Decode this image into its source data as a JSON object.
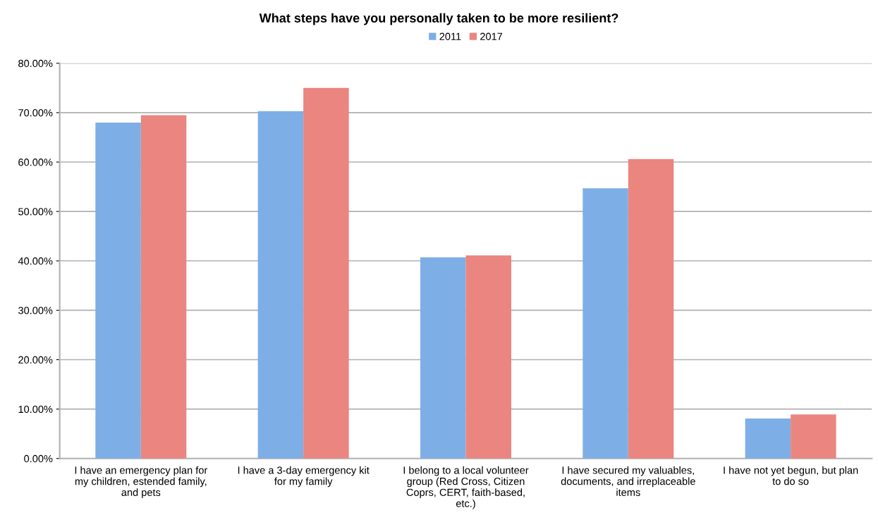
{
  "chart_data": {
    "type": "bar",
    "title": "What steps have you personally taken to be more resilient?",
    "categories": [
      "I have an emergency plan for\nmy children, estended family,\nand pets",
      "I have a 3-day emergency kit\nfor my family",
      "I belong to a local volunteer\ngroup (Red Cross, Citizen\nCoprs, CERT, faith-based,\netc.)",
      "I have secured my valuables,\ndocuments, and irreplaceable\nitems",
      "I have not yet begun, but plan\nto do so"
    ],
    "series": [
      {
        "name": "2011",
        "color": "#7eaee6",
        "values": [
          68.0,
          70.3,
          40.7,
          54.7,
          8.1
        ]
      },
      {
        "name": "2017",
        "color": "#ea8580",
        "values": [
          69.5,
          75.0,
          41.1,
          60.6,
          8.9
        ]
      }
    ],
    "ylim": [
      0,
      80
    ],
    "yticks": [
      {
        "value": 0,
        "label": "0.00%"
      },
      {
        "value": 10,
        "label": "10.00%"
      },
      {
        "value": 20,
        "label": "20.00%"
      },
      {
        "value": 30,
        "label": "30.00%"
      },
      {
        "value": 40,
        "label": "40.00%"
      },
      {
        "value": 50,
        "label": "50.00%"
      },
      {
        "value": 60,
        "label": "60.00%"
      },
      {
        "value": 70,
        "label": "70.00%"
      },
      {
        "value": 80,
        "label": "80.00%"
      }
    ],
    "grid": "y",
    "legend": "top"
  }
}
